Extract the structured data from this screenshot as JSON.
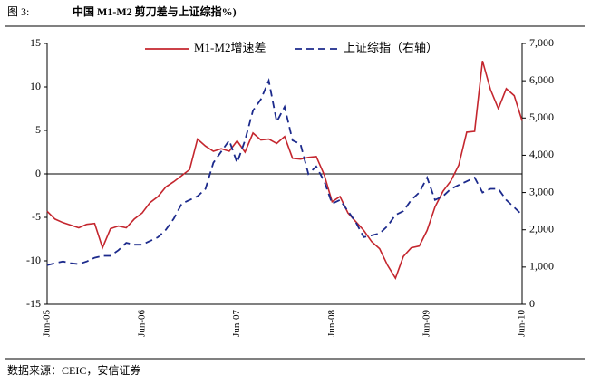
{
  "figure_label": "图 3:",
  "source": "数据来源：CEIC，安信证券",
  "chart_data": {
    "type": "line",
    "title": "中国 M1-M2 剪刀差与上证综指%)",
    "categories": [
      "Jun-05",
      null,
      null,
      null,
      null,
      null,
      null,
      null,
      null,
      null,
      null,
      null,
      "Jun-06",
      null,
      null,
      null,
      null,
      null,
      null,
      null,
      null,
      null,
      null,
      null,
      "Jun-07",
      null,
      null,
      null,
      null,
      null,
      null,
      null,
      null,
      null,
      null,
      null,
      "Jun-08",
      null,
      null,
      null,
      null,
      null,
      null,
      null,
      null,
      null,
      null,
      null,
      "Jun-09",
      null,
      null,
      null,
      null,
      null,
      null,
      null,
      null,
      null,
      null,
      null,
      "Jun-10"
    ],
    "ylim": [
      -15,
      15
    ],
    "yticks": [
      -15,
      -10,
      -5,
      0,
      5,
      10,
      15
    ],
    "y2lim": [
      0,
      7000
    ],
    "y2ticks": [
      0,
      {
        "value": 1000,
        "label": "1,000"
      },
      {
        "value": 2000,
        "label": "2,000"
      },
      {
        "value": 3000,
        "label": "3,000"
      },
      {
        "value": 4000,
        "label": "4,000"
      },
      {
        "value": 5000,
        "label": "5,000"
      },
      {
        "value": 6000,
        "label": "6,000"
      },
      {
        "value": 7000,
        "label": "7,000"
      }
    ],
    "series": [
      {
        "name": "M1-M2增速差",
        "color": "#c4262e",
        "values": [
          -4.3,
          -5.2,
          -5.6,
          -5.9,
          -6.2,
          -5.8,
          -5.7,
          -8.5,
          -6.3,
          -6.0,
          -6.2,
          -5.2,
          -4.5,
          -3.3,
          -2.6,
          -1.5,
          -0.9,
          -0.2,
          0.5,
          4.0,
          3.2,
          2.6,
          2.9,
          2.6,
          3.8,
          2.5,
          4.7,
          3.9,
          4.0,
          3.5,
          4.3,
          1.8,
          1.7,
          1.9,
          2.0,
          -0.1,
          -3.2,
          -2.6,
          -4.5,
          -5.5,
          -6.5,
          -7.8,
          -8.6,
          -10.5,
          -12.0,
          -9.5,
          -8.5,
          -8.3,
          -6.5,
          -3.8,
          -2.0,
          -0.8,
          1.0,
          4.8,
          4.9,
          13.0,
          9.7,
          7.5,
          9.8,
          9.0,
          6.1
        ]
      },
      {
        "name": "上证综指（右轴）",
        "color": "#1c2a8c",
        "axis": "y2",
        "values": [
          1050,
          1100,
          1150,
          1100,
          1080,
          1150,
          1250,
          1300,
          1300,
          1450,
          1650,
          1600,
          1600,
          1700,
          1800,
          2000,
          2300,
          2700,
          2800,
          2900,
          3100,
          3800,
          4100,
          4400,
          3800,
          4400,
          5200,
          5500,
          6000,
          4900,
          5300,
          4400,
          4300,
          3500,
          3700,
          3300,
          2700,
          2800,
          2500,
          2200,
          1800,
          1850,
          1900,
          2100,
          2400,
          2500,
          2800,
          3000,
          3400,
          2800,
          2900,
          3100,
          3200,
          3300,
          3400,
          3000,
          3100,
          3100,
          2800,
          2600,
          2400
        ]
      }
    ]
  }
}
